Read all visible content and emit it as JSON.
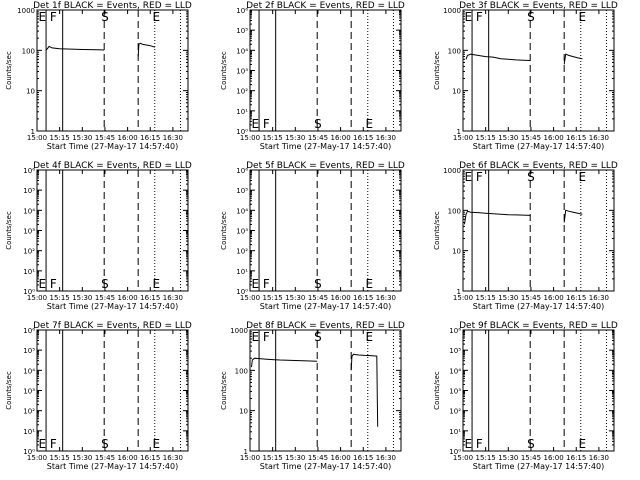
{
  "xlabel": "Start Time (27-May-17 14:57:40)",
  "ylabel": "Counts/sec",
  "x_tick_labels": [
    "15:00",
    "15:15",
    "15:30",
    "15:45",
    "16:00",
    "16:15",
    "16:30"
  ],
  "x_ticks_min": [
    0,
    15,
    30,
    45,
    60,
    75,
    90
  ],
  "x_range_min": [
    0,
    100
  ],
  "markers": {
    "solid_min": [
      6,
      17
    ],
    "dashed_min": [
      44.5,
      67
    ],
    "dotted_min": [
      78,
      95
    ],
    "letters": [
      {
        "text": "E",
        "x_min": 1
      },
      {
        "text": "F",
        "x_min": 8.5
      },
      {
        "text": "S",
        "x_min": 42.5
      },
      {
        "text": "E",
        "x_min": 76.5
      }
    ]
  },
  "chart_data": [
    {
      "type": "line",
      "title": "Det 1f BLACK = Events, RED = LLD",
      "yscale": "log",
      "ylim": [
        1,
        1000
      ],
      "ytick_labels": [
        "1",
        "10",
        "100",
        "1000"
      ],
      "ytick_values": [
        1,
        10,
        100,
        1000
      ],
      "series": [
        {
          "x": [
            6,
            8,
            10,
            15,
            20,
            25,
            30,
            35,
            40,
            44.5
          ],
          "y": [
            100,
            125,
            115,
            110,
            108,
            106,
            105,
            104,
            103,
            102
          ]
        },
        {
          "x": [
            67,
            67.5,
            68.5,
            70,
            73,
            75,
            78
          ],
          "y": [
            70,
            140,
            150,
            140,
            135,
            130,
            120
          ]
        }
      ]
    },
    {
      "type": "line",
      "title": "Det 2f BLACK = Events, RED = LLD",
      "yscale": "log",
      "ylim": [
        1,
        1000000
      ],
      "ytick_labels": [
        "10⁰",
        "10¹",
        "10²",
        "10³",
        "10⁴",
        "10⁵",
        "10⁶"
      ],
      "ytick_values": [
        1,
        10,
        100,
        1000,
        10000,
        100000,
        1000000
      ],
      "series": []
    },
    {
      "type": "line",
      "title": "Det 3f BLACK = Events, RED = LLD",
      "yscale": "log",
      "ylim": [
        1,
        1000
      ],
      "ytick_labels": [
        "1",
        "10",
        "100",
        "1000"
      ],
      "ytick_values": [
        1,
        10,
        100,
        1000
      ],
      "series": [
        {
          "x": [
            2,
            3,
            5,
            10,
            15,
            20,
            25,
            30,
            35,
            40,
            44.5
          ],
          "y": [
            60,
            75,
            80,
            75,
            70,
            68,
            62,
            60,
            58,
            57,
            56
          ]
        },
        {
          "x": [
            67,
            68,
            70,
            73,
            76,
            79
          ],
          "y": [
            45,
            80,
            75,
            70,
            65,
            62
          ]
        }
      ]
    },
    {
      "type": "line",
      "title": "Det 4f BLACK = Events, RED = LLD",
      "yscale": "log",
      "ylim": [
        1,
        1000000
      ],
      "ytick_labels": [
        "10⁰",
        "10¹",
        "10²",
        "10³",
        "10⁴",
        "10⁵",
        "10⁶"
      ],
      "ytick_values": [
        1,
        10,
        100,
        1000,
        10000,
        100000,
        1000000
      ],
      "series": []
    },
    {
      "type": "line",
      "title": "Det 5f BLACK = Events, RED = LLD",
      "yscale": "log",
      "ylim": [
        1,
        1000000
      ],
      "ytick_labels": [
        "10⁰",
        "10¹",
        "10²",
        "10³",
        "10⁴",
        "10⁵",
        "10⁶"
      ],
      "ytick_values": [
        1,
        10,
        100,
        1000,
        10000,
        100000,
        1000000
      ],
      "series": []
    },
    {
      "type": "line",
      "title": "Det 6f BLACK = Events, RED = LLD",
      "yscale": "log",
      "ylim": [
        1,
        1000
      ],
      "ytick_labels": [
        "1",
        "10",
        "100",
        "1000"
      ],
      "ytick_values": [
        1,
        10,
        100,
        1000
      ],
      "series": [
        {
          "x": [
            1,
            2,
            3,
            5,
            10,
            15,
            20,
            25,
            30,
            35,
            40,
            44.5
          ],
          "y": [
            45,
            80,
            95,
            90,
            88,
            85,
            82,
            80,
            78,
            77,
            76,
            75
          ]
        },
        {
          "x": [
            67,
            68,
            70,
            73,
            76,
            79
          ],
          "y": [
            50,
            100,
            95,
            90,
            85,
            80
          ]
        }
      ]
    },
    {
      "type": "line",
      "title": "Det 7f BLACK = Events, RED = LLD",
      "yscale": "log",
      "ylim": [
        1,
        1000000
      ],
      "ytick_labels": [
        "10⁰",
        "10¹",
        "10²",
        "10³",
        "10⁴",
        "10⁵",
        "10⁶"
      ],
      "ytick_values": [
        1,
        10,
        100,
        1000,
        10000,
        100000,
        1000000
      ],
      "series": []
    },
    {
      "type": "line",
      "title": "Det 8f BLACK = Events, RED = LLD",
      "yscale": "log",
      "ylim": [
        1,
        1000
      ],
      "ytick_labels": [
        "1",
        "10",
        "100",
        "1000"
      ],
      "ytick_values": [
        1,
        10,
        100,
        1000
      ],
      "series": [
        {
          "x": [
            1,
            1.5,
            3,
            6,
            10,
            15,
            20,
            25,
            30,
            35,
            40,
            44.5
          ],
          "y": [
            120,
            180,
            200,
            195,
            190,
            185,
            180,
            178,
            175,
            172,
            170,
            168
          ]
        },
        {
          "x": [
            67,
            67.5,
            68.5,
            72,
            76,
            81,
            84,
            84.3,
            84.6
          ],
          "y": [
            100,
            220,
            250,
            240,
            235,
            230,
            225,
            20,
            4
          ]
        }
      ]
    },
    {
      "type": "line",
      "title": "Det 9f BLACK = Events, RED = LLD",
      "yscale": "log",
      "ylim": [
        1,
        1000000
      ],
      "ytick_labels": [
        "10⁰",
        "10¹",
        "10²",
        "10³",
        "10⁴",
        "10⁵",
        "10⁶"
      ],
      "ytick_values": [
        1,
        10,
        100,
        1000,
        10000,
        100000,
        1000000
      ],
      "series": []
    }
  ]
}
